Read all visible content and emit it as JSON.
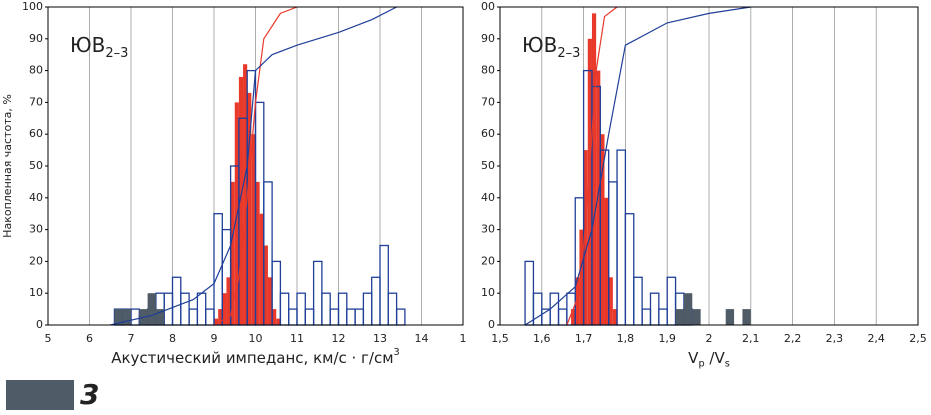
{
  "chart_data": [
    {
      "type": "histogram",
      "annotation": [
        {
          "text": "ЮВ"
        },
        {
          "text": "2–3",
          "sub": true
        }
      ],
      "x_label": [
        {
          "text": "Акустический импеданс, км/с · г/см"
        },
        {
          "text": "3",
          "sup": true
        }
      ],
      "y_label": "Накопленная частота, %",
      "xlim": [
        5,
        15
      ],
      "xticks": [
        5,
        6,
        7,
        8,
        9,
        10,
        11,
        12,
        13,
        14,
        {
          "value": 15,
          "label": "1"
        }
      ],
      "ylim": [
        0,
        100
      ],
      "yticks": [
        0,
        10,
        20,
        30,
        40,
        50,
        60,
        70,
        80,
        90,
        100
      ],
      "grid": true,
      "series": [
        {
          "style": "filled",
          "color": "#e8392a",
          "bins": [
            9.0,
            9.1,
            9.2,
            9.3,
            9.4,
            9.5,
            9.6,
            9.7,
            9.8,
            9.9,
            10.0,
            10.1,
            10.2,
            10.3,
            10.4,
            10.5,
            10.6
          ],
          "values": [
            2,
            5,
            10,
            15,
            45,
            70,
            78,
            82,
            73,
            60,
            45,
            35,
            25,
            15,
            5,
            2
          ]
        },
        {
          "style": "outline",
          "color": "#1f3f99",
          "bins": [
            6.4,
            6.6,
            6.8,
            7.0,
            7.2,
            7.4,
            7.6,
            7.8,
            8.0,
            8.2,
            8.4,
            8.6,
            8.8,
            9.0,
            9.2,
            9.4,
            9.6,
            9.8,
            10.0,
            10.2,
            10.4,
            10.6,
            10.8,
            11.0,
            11.2,
            11.4,
            11.6,
            11.8,
            12.0,
            12.2,
            12.4,
            12.6,
            12.8,
            13.0,
            13.2,
            13.4,
            13.6
          ],
          "values": [
            0,
            5,
            5,
            5,
            3,
            5,
            10,
            10,
            15,
            10,
            5,
            10,
            5,
            35,
            30,
            50,
            65,
            80,
            70,
            45,
            20,
            10,
            5,
            10,
            5,
            20,
            10,
            5,
            10,
            5,
            5,
            10,
            15,
            25,
            10,
            5
          ]
        },
        {
          "style": "filled",
          "color": "#4f5b66",
          "bins": [
            6.6,
            6.8,
            7.0,
            7.2,
            7.4,
            7.6,
            7.8
          ],
          "values": [
            5,
            5,
            0,
            5,
            10,
            5
          ]
        },
        {
          "style": "line",
          "color": "#e8392a",
          "x": [
            9.0,
            9.4,
            9.6,
            9.8,
            10.0,
            10.2,
            10.6,
            11.0
          ],
          "values": [
            0,
            3,
            15,
            40,
            70,
            90,
            98,
            100
          ]
        },
        {
          "style": "line",
          "color": "#1f3f99",
          "x": [
            6.5,
            7.5,
            8.5,
            9.0,
            9.4,
            9.8,
            10.0,
            10.4,
            11.0,
            12.0,
            12.8,
            13.4
          ],
          "values": [
            0,
            3,
            8,
            13,
            25,
            50,
            80,
            85,
            88,
            92,
            96,
            100
          ]
        }
      ]
    },
    {
      "type": "histogram",
      "annotation": [
        {
          "text": "ЮВ"
        },
        {
          "text": "2–3",
          "sub": true
        }
      ],
      "x_label": [
        {
          "text": "V"
        },
        {
          "text": "p",
          "sub": true
        },
        {
          "text": " /V"
        },
        {
          "text": "s",
          "sub": true
        }
      ],
      "xlim": [
        1.5,
        2.5
      ],
      "xticks": [
        {
          "value": 1.5,
          "label": "1,5"
        },
        {
          "value": 1.6,
          "label": "1,6"
        },
        {
          "value": 1.7,
          "label": "1,7"
        },
        {
          "value": 1.8,
          "label": "1,8"
        },
        {
          "value": 1.9,
          "label": "1,9"
        },
        2,
        {
          "value": 2.1,
          "label": "2,1"
        },
        {
          "value": 2.2,
          "label": "2,2"
        },
        {
          "value": 2.3,
          "label": "2,3"
        },
        {
          "value": 2.4,
          "label": "2,4"
        },
        {
          "value": 2.5,
          "label": "2,5"
        }
      ],
      "ylim": [
        0,
        100
      ],
      "yticks": [
        0,
        10,
        20,
        30,
        40,
        50,
        60,
        70,
        80,
        90,
        {
          "value": 100,
          "label": "00"
        }
      ],
      "grid": true,
      "series": [
        {
          "style": "filled",
          "color": "#e8392a",
          "bins": [
            1.67,
            1.68,
            1.69,
            1.7,
            1.71,
            1.72,
            1.73,
            1.74,
            1.75,
            1.76,
            1.77,
            1.78
          ],
          "values": [
            5,
            15,
            30,
            55,
            90,
            98,
            80,
            60,
            40,
            15,
            5
          ]
        },
        {
          "style": "outline",
          "color": "#1f3f99",
          "bins": [
            1.56,
            1.58,
            1.6,
            1.62,
            1.64,
            1.66,
            1.68,
            1.7,
            1.72,
            1.74,
            1.76,
            1.78,
            1.8,
            1.82,
            1.84,
            1.86,
            1.88,
            1.9,
            1.92,
            1.94,
            1.96
          ],
          "values": [
            20,
            10,
            5,
            10,
            5,
            10,
            40,
            80,
            75,
            55,
            45,
            55,
            35,
            15,
            5,
            10,
            5,
            15,
            10,
            5
          ]
        },
        {
          "style": "filled",
          "color": "#4f5b66",
          "bins": [
            1.92,
            1.94,
            1.96,
            1.98,
            2.0,
            2.02,
            2.04,
            2.06,
            2.08,
            2.1
          ],
          "values": [
            5,
            10,
            5,
            0,
            0,
            0,
            5,
            0,
            5
          ]
        },
        {
          "style": "line",
          "color": "#e8392a",
          "x": [
            1.66,
            1.69,
            1.71,
            1.73,
            1.75,
            1.78
          ],
          "values": [
            0,
            10,
            40,
            80,
            97,
            100
          ]
        },
        {
          "style": "line",
          "color": "#1f3f99",
          "x": [
            1.56,
            1.62,
            1.68,
            1.72,
            1.76,
            1.8,
            1.9,
            2.0,
            2.1
          ],
          "values": [
            0,
            5,
            12,
            30,
            60,
            88,
            95,
            98,
            100
          ]
        }
      ]
    }
  ],
  "legend": [
    {
      "label": "3",
      "color": "#4f5b66"
    }
  ]
}
